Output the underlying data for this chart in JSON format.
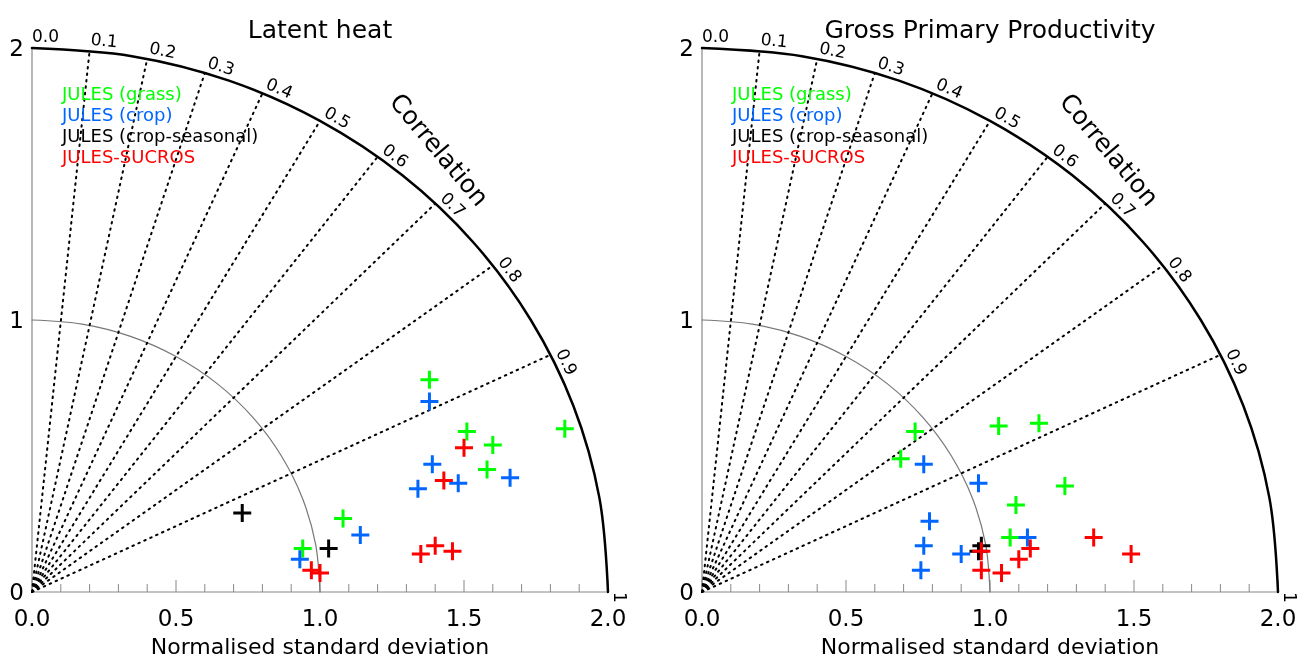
{
  "chart_data": [
    {
      "type": "scatter",
      "title": "Latent heat",
      "xlabel": "Normalised standard deviation",
      "xlim": [
        0,
        2
      ],
      "ylim": [
        0,
        2
      ],
      "xticks": [
        {
          "value": 0,
          "label": "0.0"
        },
        {
          "value": 0.1,
          "label": null
        },
        {
          "value": 0.2,
          "label": null
        },
        {
          "value": 0.3,
          "label": null
        },
        {
          "value": 0.4,
          "label": null
        },
        {
          "value": 0.5,
          "label": "0.5"
        },
        {
          "value": 0.6,
          "label": null
        },
        {
          "value": 0.7,
          "label": null
        },
        {
          "value": 0.8,
          "label": null
        },
        {
          "value": 0.9,
          "label": null
        },
        {
          "value": 1,
          "label": "1.0"
        },
        {
          "value": 1.1,
          "label": null
        },
        {
          "value": 1.2,
          "label": null
        },
        {
          "value": 1.3,
          "label": null
        },
        {
          "value": 1.4,
          "label": null
        },
        {
          "value": 1.5,
          "label": "1.5"
        },
        {
          "value": 1.6,
          "label": null
        },
        {
          "value": 1.7,
          "label": null
        },
        {
          "value": 1.8,
          "label": null
        },
        {
          "value": 1.9,
          "label": null
        },
        {
          "value": 2,
          "label": "2.0"
        }
      ],
      "yticks": [
        0,
        1,
        2
      ],
      "legend": "top left",
      "annotations": [
        "Correlation",
        {
          "text": "0.0",
          "x": 0,
          "y": 2
        },
        {
          "text": "0.1",
          "x": 0.2,
          "y": 1.99
        },
        {
          "text": "0.2",
          "x": 0.4,
          "y": 1.96
        },
        {
          "text": "0.3",
          "x": 0.6,
          "y": 1.908
        },
        {
          "text": "0.4",
          "x": 0.8,
          "y": 1.833
        },
        {
          "text": "0.5",
          "x": 1,
          "y": 1.732
        },
        {
          "text": "0.6",
          "x": 1.2,
          "y": 1.6
        },
        {
          "text": "0.7",
          "x": 1.4,
          "y": 1.428
        },
        {
          "text": "0.8",
          "x": 1.6,
          "y": 1.2
        },
        {
          "text": "0.9",
          "x": 1.8,
          "y": 0.872
        },
        {
          "text": "1",
          "x": 2,
          "y": 0
        }
      ],
      "series": [
        {
          "type": "line",
          "color": "#777777",
          "line_style": "solid",
          "marker": "none",
          "x": [
            1,
            0.985,
            0.94,
            0.866,
            0.766,
            0.643,
            0.5,
            0.342,
            0.174,
            0
          ],
          "values": [
            0,
            0.174,
            0.342,
            0.5,
            0.643,
            0.766,
            0.866,
            0.94,
            0.985,
            1
          ]
        },
        {
          "type": "line",
          "color": "#000000",
          "line_style": "solid",
          "marker": "none",
          "x": [
            2,
            1.97,
            1.88,
            1.732,
            1.532,
            1.286,
            1,
            0.684,
            0.347,
            0
          ],
          "values": [
            0,
            0.347,
            0.684,
            1,
            1.286,
            1.532,
            1.732,
            1.88,
            1.97,
            2
          ]
        },
        {
          "type": "line",
          "color": "#000000",
          "line_style": "dotted",
          "marker": "none",
          "x": [
            0,
            0.2
          ],
          "values": [
            0,
            1.99
          ]
        },
        {
          "type": "line",
          "color": "#000000",
          "line_style": "dotted",
          "marker": "none",
          "x": [
            0,
            0.4
          ],
          "values": [
            0,
            1.96
          ]
        },
        {
          "type": "line",
          "color": "#000000",
          "line_style": "dotted",
          "marker": "none",
          "x": [
            0,
            0.6
          ],
          "values": [
            0,
            1.908
          ]
        },
        {
          "type": "line",
          "color": "#000000",
          "line_style": "dotted",
          "marker": "none",
          "x": [
            0,
            0.8
          ],
          "values": [
            0,
            1.833
          ]
        },
        {
          "type": "line",
          "color": "#000000",
          "line_style": "dotted",
          "marker": "none",
          "x": [
            0,
            1
          ],
          "values": [
            0,
            1.732
          ]
        },
        {
          "type": "line",
          "color": "#000000",
          "line_style": "dotted",
          "marker": "none",
          "x": [
            0,
            1.2
          ],
          "values": [
            0,
            1.6
          ]
        },
        {
          "type": "line",
          "color": "#000000",
          "line_style": "dotted",
          "marker": "none",
          "x": [
            0,
            1.4
          ],
          "values": [
            0,
            1.428
          ]
        },
        {
          "type": "line",
          "color": "#000000",
          "line_style": "dotted",
          "marker": "none",
          "x": [
            0,
            1.6
          ],
          "values": [
            0,
            1.2
          ]
        },
        {
          "type": "line",
          "color": "#000000",
          "line_style": "dotted",
          "marker": "none",
          "x": [
            0,
            1.8
          ],
          "values": [
            0,
            0.872
          ]
        },
        {
          "name": "JULES (grass)",
          "color": "#00ff00",
          "marker": "cross",
          "x": [
            1.38,
            1.51,
            1.6,
            1.58,
            1.85,
            1.08,
            0.94
          ],
          "values": [
            0.78,
            0.59,
            0.54,
            0.45,
            0.6,
            0.27,
            0.16
          ]
        },
        {
          "name": "JULES (crop)",
          "color": "#0066ff",
          "marker": "cross",
          "x": [
            1.38,
            1.39,
            1.34,
            1.48,
            1.66,
            1.14,
            0.93
          ],
          "values": [
            0.7,
            0.47,
            0.38,
            0.4,
            0.42,
            0.21,
            0.12
          ]
        },
        {
          "name": "JULES (crop-seasonal)",
          "color": "#000000",
          "marker": "cross",
          "x": [
            0.73,
            1.03
          ],
          "values": [
            0.29,
            0.16
          ]
        },
        {
          "name": "JULES-SUCROS",
          "color": "#ff0000",
          "marker": "cross",
          "x": [
            1.5,
            1.43,
            1.35,
            1.4,
            1.46,
            0.97,
            1.0
          ],
          "values": [
            0.53,
            0.41,
            0.14,
            0.17,
            0.15,
            0.08,
            0.07
          ]
        }
      ]
    },
    {
      "type": "scatter",
      "title": "Gross Primary Productivity",
      "xlabel": "Normalised standard deviation",
      "xlim": [
        0,
        2
      ],
      "ylim": [
        0,
        2
      ],
      "xticks": [
        {
          "value": 0,
          "label": "0.0"
        },
        {
          "value": 0.1,
          "label": null
        },
        {
          "value": 0.2,
          "label": null
        },
        {
          "value": 0.3,
          "label": null
        },
        {
          "value": 0.4,
          "label": null
        },
        {
          "value": 0.5,
          "label": "0.5"
        },
        {
          "value": 0.6,
          "label": null
        },
        {
          "value": 0.7,
          "label": null
        },
        {
          "value": 0.8,
          "label": null
        },
        {
          "value": 0.9,
          "label": null
        },
        {
          "value": 1,
          "label": "1.0"
        },
        {
          "value": 1.1,
          "label": null
        },
        {
          "value": 1.2,
          "label": null
        },
        {
          "value": 1.3,
          "label": null
        },
        {
          "value": 1.4,
          "label": null
        },
        {
          "value": 1.5,
          "label": "1.5"
        },
        {
          "value": 1.6,
          "label": null
        },
        {
          "value": 1.7,
          "label": null
        },
        {
          "value": 1.8,
          "label": null
        },
        {
          "value": 1.9,
          "label": null
        },
        {
          "value": 2,
          "label": "2.0"
        }
      ],
      "yticks": [
        0,
        1,
        2
      ],
      "legend": "top left",
      "annotations": [
        "Correlation",
        {
          "text": "0.0",
          "x": 0,
          "y": 2
        },
        {
          "text": "0.1",
          "x": 0.2,
          "y": 1.99
        },
        {
          "text": "0.2",
          "x": 0.4,
          "y": 1.96
        },
        {
          "text": "0.3",
          "x": 0.6,
          "y": 1.908
        },
        {
          "text": "0.4",
          "x": 0.8,
          "y": 1.833
        },
        {
          "text": "0.5",
          "x": 1,
          "y": 1.732
        },
        {
          "text": "0.6",
          "x": 1.2,
          "y": 1.6
        },
        {
          "text": "0.7",
          "x": 1.4,
          "y": 1.428
        },
        {
          "text": "0.8",
          "x": 1.6,
          "y": 1.2
        },
        {
          "text": "0.9",
          "x": 1.8,
          "y": 0.872
        },
        {
          "text": "1",
          "x": 2,
          "y": 0
        }
      ],
      "series": [
        {
          "type": "line",
          "color": "#777777",
          "line_style": "solid",
          "marker": "none",
          "x": [
            1,
            0.985,
            0.94,
            0.866,
            0.766,
            0.643,
            0.5,
            0.342,
            0.174,
            0
          ],
          "values": [
            0,
            0.174,
            0.342,
            0.5,
            0.643,
            0.766,
            0.866,
            0.94,
            0.985,
            1
          ]
        },
        {
          "type": "line",
          "color": "#000000",
          "line_style": "solid",
          "marker": "none",
          "x": [
            2,
            1.97,
            1.88,
            1.732,
            1.532,
            1.286,
            1,
            0.684,
            0.347,
            0
          ],
          "values": [
            0,
            0.347,
            0.684,
            1,
            1.286,
            1.532,
            1.732,
            1.88,
            1.97,
            2
          ]
        },
        {
          "type": "line",
          "color": "#000000",
          "line_style": "dotted",
          "marker": "none",
          "x": [
            0,
            0.2
          ],
          "values": [
            0,
            1.99
          ]
        },
        {
          "type": "line",
          "color": "#000000",
          "line_style": "dotted",
          "marker": "none",
          "x": [
            0,
            0.4
          ],
          "values": [
            0,
            1.96
          ]
        },
        {
          "type": "line",
          "color": "#000000",
          "line_style": "dotted",
          "marker": "none",
          "x": [
            0,
            0.6
          ],
          "values": [
            0,
            1.908
          ]
        },
        {
          "type": "line",
          "color": "#000000",
          "line_style": "dotted",
          "marker": "none",
          "x": [
            0,
            0.8
          ],
          "values": [
            0,
            1.833
          ]
        },
        {
          "type": "line",
          "color": "#000000",
          "line_style": "dotted",
          "marker": "none",
          "x": [
            0,
            1
          ],
          "values": [
            0,
            1.732
          ]
        },
        {
          "type": "line",
          "color": "#000000",
          "line_style": "dotted",
          "marker": "none",
          "x": [
            0,
            1.2
          ],
          "values": [
            0,
            1.6
          ]
        },
        {
          "type": "line",
          "color": "#000000",
          "line_style": "dotted",
          "marker": "none",
          "x": [
            0,
            1.4
          ],
          "values": [
            0,
            1.428
          ]
        },
        {
          "type": "line",
          "color": "#000000",
          "line_style": "dotted",
          "marker": "none",
          "x": [
            0,
            1.6
          ],
          "values": [
            0,
            1.2
          ]
        },
        {
          "type": "line",
          "color": "#000000",
          "line_style": "dotted",
          "marker": "none",
          "x": [
            0,
            1.8
          ],
          "values": [
            0,
            0.872
          ]
        },
        {
          "name": "JULES (grass)",
          "color": "#00ff00",
          "marker": "cross",
          "x": [
            0.74,
            0.69,
            1.03,
            1.17,
            1.26,
            1.09,
            1.07
          ],
          "values": [
            0.59,
            0.49,
            0.61,
            0.62,
            0.39,
            0.32,
            0.2
          ]
        },
        {
          "name": "JULES (crop)",
          "color": "#0066ff",
          "marker": "cross",
          "x": [
            0.77,
            0.96,
            0.79,
            0.77,
            0.76,
            0.9,
            1.13
          ],
          "values": [
            0.47,
            0.4,
            0.26,
            0.17,
            0.08,
            0.14,
            0.2
          ]
        },
        {
          "name": "JULES (crop-seasonal)",
          "color": "#000000",
          "marker": "cross",
          "x": [
            0.97,
            0.96
          ],
          "values": [
            0.17,
            0.15
          ]
        },
        {
          "name": "JULES-SUCROS",
          "color": "#ff0000",
          "marker": "cross",
          "x": [
            0.97,
            0.97,
            1.04,
            1.1,
            1.14,
            1.36,
            1.49
          ],
          "values": [
            0.15,
            0.08,
            0.07,
            0.12,
            0.16,
            0.2,
            0.14
          ]
        }
      ]
    }
  ]
}
